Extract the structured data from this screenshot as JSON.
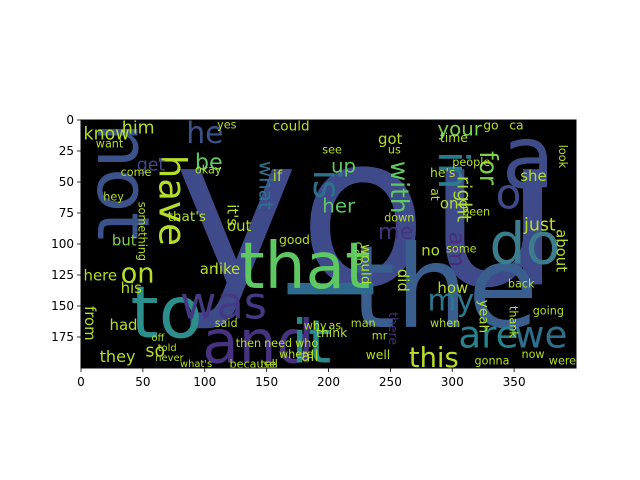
{
  "chart_data": {
    "type": "image",
    "title": "",
    "xlabel": "",
    "ylabel": "",
    "xlim": [
      0,
      400
    ],
    "ylim": [
      200,
      0
    ],
    "xticks": [
      0,
      50,
      100,
      150,
      200,
      250,
      300,
      350
    ],
    "yticks": [
      0,
      25,
      50,
      75,
      100,
      125,
      150,
      175
    ],
    "background_color": "#000000",
    "words": [
      {
        "text": "you",
        "x": 75,
        "y": 0,
        "size": 170,
        "rot": 0,
        "color": "#3f4a8a"
      },
      {
        "text": "the",
        "x": 218,
        "y": 95,
        "size": 92,
        "rot": 0,
        "color": "#3a5f8f"
      },
      {
        "text": "I",
        "x": 155,
        "y": 122,
        "size": 95,
        "rot": 90,
        "color": "#2e6a8e"
      },
      {
        "text": "a",
        "x": 340,
        "y": 0,
        "size": 70,
        "rot": 0,
        "color": "#3e4c8a"
      },
      {
        "text": "to",
        "x": 40,
        "y": 130,
        "size": 58,
        "rot": 0,
        "color": "#2c8f8c"
      },
      {
        "text": "not",
        "x": 7,
        "y": 2,
        "size": 58,
        "rot": 90,
        "color": "#3b528b"
      },
      {
        "text": "and",
        "x": 98,
        "y": 158,
        "size": 48,
        "rot": 0,
        "color": "#46327e"
      },
      {
        "text": "it",
        "x": 170,
        "y": 158,
        "size": 48,
        "rot": 0,
        "color": "#2a8a8b"
      },
      {
        "text": "that",
        "x": 128,
        "y": 95,
        "size": 52,
        "rot": 0,
        "color": "#5ec962"
      },
      {
        "text": "do",
        "x": 330,
        "y": 80,
        "size": 46,
        "rot": 0,
        "color": "#3b7d8d"
      },
      {
        "text": "was",
        "x": 80,
        "y": 132,
        "size": 36,
        "rot": 0,
        "color": "#443a83"
      },
      {
        "text": "are",
        "x": 305,
        "y": 160,
        "size": 30,
        "rot": 0,
        "color": "#26828e"
      },
      {
        "text": "we",
        "x": 350,
        "y": 160,
        "size": 30,
        "rot": 0,
        "color": "#2d708e"
      },
      {
        "text": "in",
        "x": 285,
        "y": 25,
        "size": 34,
        "rot": 90,
        "color": "#287c8e"
      },
      {
        "text": "of",
        "x": 335,
        "y": 45,
        "size": 34,
        "rot": 0,
        "color": "#3e4a89"
      },
      {
        "text": "have",
        "x": 60,
        "y": 28,
        "size": 30,
        "rot": 90,
        "color": "#b5de2b"
      },
      {
        "text": "is",
        "x": 185,
        "y": 40,
        "size": 30,
        "rot": 90,
        "color": "#2c718e"
      },
      {
        "text": "my",
        "x": 280,
        "y": 135,
        "size": 24,
        "rot": 0,
        "color": "#2a788e"
      },
      {
        "text": "this",
        "x": 265,
        "y": 182,
        "size": 22,
        "rot": 0,
        "color": "#b8de29"
      },
      {
        "text": "he",
        "x": 85,
        "y": 0,
        "size": 24,
        "rot": 0,
        "color": "#3b528b"
      },
      {
        "text": "be",
        "x": 92,
        "y": 26,
        "size": 18,
        "rot": 0,
        "color": "#5ec962"
      },
      {
        "text": "on",
        "x": 32,
        "y": 114,
        "size": 22,
        "rot": 0,
        "color": "#b5de2b"
      },
      {
        "text": "for",
        "x": 320,
        "y": 25,
        "size": 20,
        "rot": 90,
        "color": "#7ad151"
      },
      {
        "text": "right",
        "x": 302,
        "y": 45,
        "size": 16,
        "rot": 90,
        "color": "#a2da37"
      },
      {
        "text": "am",
        "x": 295,
        "y": 90,
        "size": 18,
        "rot": 90,
        "color": "#472d7b"
      },
      {
        "text": "with",
        "x": 248,
        "y": 33,
        "size": 20,
        "rot": 90,
        "color": "#5ec962"
      },
      {
        "text": "me",
        "x": 240,
        "y": 82,
        "size": 18,
        "rot": 0,
        "color": "#46337e"
      },
      {
        "text": "your",
        "x": 288,
        "y": 0,
        "size": 16,
        "rot": 0,
        "color": "#7ad151"
      },
      {
        "text": "up",
        "x": 202,
        "y": 30,
        "size": 16,
        "rot": 0,
        "color": "#63cb5f"
      },
      {
        "text": "her",
        "x": 195,
        "y": 62,
        "size": 16,
        "rot": 0,
        "color": "#5ec962"
      },
      {
        "text": "what",
        "x": 142,
        "y": 33,
        "size": 16,
        "rot": 90,
        "color": "#2c728e"
      },
      {
        "text": "know",
        "x": 2,
        "y": 5,
        "size": 14,
        "rot": 0,
        "color": "#b5de2b"
      },
      {
        "text": "him",
        "x": 33,
        "y": 0,
        "size": 14,
        "rot": 0,
        "color": "#b5de2b"
      },
      {
        "text": "get",
        "x": 45,
        "y": 30,
        "size": 14,
        "rot": 0,
        "color": "#3e4a89"
      },
      {
        "text": "so",
        "x": 52,
        "y": 180,
        "size": 14,
        "rot": 0,
        "color": "#b5de2b"
      },
      {
        "text": "they",
        "x": 15,
        "y": 185,
        "size": 13,
        "rot": 0,
        "color": "#b5de2b"
      },
      {
        "text": "here",
        "x": 2,
        "y": 120,
        "size": 12,
        "rot": 0,
        "color": "#b5de2b"
      },
      {
        "text": "from",
        "x": 2,
        "y": 150,
        "size": 12,
        "rot": 90,
        "color": "#b5de2b"
      },
      {
        "text": "but",
        "x": 25,
        "y": 92,
        "size": 12,
        "rot": 0,
        "color": "#7ad151"
      },
      {
        "text": "his",
        "x": 32,
        "y": 130,
        "size": 12,
        "rot": 0,
        "color": "#b5de2b"
      },
      {
        "text": "had",
        "x": 23,
        "y": 160,
        "size": 12,
        "rot": 0,
        "color": "#b5de2b"
      },
      {
        "text": "just",
        "x": 358,
        "y": 78,
        "size": 14,
        "rot": 0,
        "color": "#b5de2b"
      },
      {
        "text": "about",
        "x": 383,
        "y": 88,
        "size": 12,
        "rot": 90,
        "color": "#b5de2b"
      },
      {
        "text": "she",
        "x": 355,
        "y": 40,
        "size": 12,
        "rot": 0,
        "color": "#b5de2b"
      },
      {
        "text": "one",
        "x": 290,
        "y": 62,
        "size": 12,
        "rot": 0,
        "color": "#b5de2b"
      },
      {
        "text": "how",
        "x": 288,
        "y": 130,
        "size": 12,
        "rot": 0,
        "color": "#b5de2b"
      },
      {
        "text": "no",
        "x": 275,
        "y": 100,
        "size": 12,
        "rot": 0,
        "color": "#b5de2b"
      },
      {
        "text": "did",
        "x": 255,
        "y": 120,
        "size": 12,
        "rot": 90,
        "color": "#b5de2b"
      },
      {
        "text": "would",
        "x": 225,
        "y": 100,
        "size": 11,
        "rot": 90,
        "color": "#b5de2b"
      },
      {
        "text": "can",
        "x": 219,
        "y": 98,
        "size": 11,
        "rot": 90,
        "color": "#7ad151"
      },
      {
        "text": "got",
        "x": 240,
        "y": 10,
        "size": 12,
        "rot": 0,
        "color": "#b5de2b"
      },
      {
        "text": "like",
        "x": 108,
        "y": 115,
        "size": 12,
        "rot": 0,
        "color": "#b5de2b"
      },
      {
        "text": "an",
        "x": 96,
        "y": 115,
        "size": 12,
        "rot": 0,
        "color": "#b5de2b"
      },
      {
        "text": "out",
        "x": 118,
        "y": 80,
        "size": 12,
        "rot": 0,
        "color": "#b5de2b"
      },
      {
        "text": "if",
        "x": 155,
        "y": 40,
        "size": 12,
        "rot": 0,
        "color": "#b5de2b"
      },
      {
        "text": "all",
        "x": 178,
        "y": 185,
        "size": 12,
        "rot": 0,
        "color": "#b5de2b"
      },
      {
        "text": "think",
        "x": 190,
        "y": 167,
        "size": 10,
        "rot": 0,
        "color": "#b5de2b"
      },
      {
        "text": "could",
        "x": 155,
        "y": 0,
        "size": 11,
        "rot": 0,
        "color": "#b5de2b"
      },
      {
        "text": "good",
        "x": 160,
        "y": 92,
        "size": 10,
        "rot": 0,
        "color": "#b5de2b"
      },
      {
        "text": "yeah",
        "x": 320,
        "y": 145,
        "size": 11,
        "rot": 90,
        "color": "#b5de2b"
      },
      {
        "text": "well",
        "x": 230,
        "y": 185,
        "size": 10,
        "rot": 0,
        "color": "#b5de2b"
      },
      {
        "text": "there",
        "x": 248,
        "y": 155,
        "size": 10,
        "rot": 90,
        "color": "#46327e"
      },
      {
        "text": "time",
        "x": 290,
        "y": 10,
        "size": 10,
        "rot": 0,
        "color": "#b5de2b"
      },
      {
        "text": "go",
        "x": 325,
        "y": 0,
        "size": 10,
        "rot": 0,
        "color": "#b5de2b"
      },
      {
        "text": "ca",
        "x": 346,
        "y": 0,
        "size": 10,
        "rot": 0,
        "color": "#b5de2b"
      },
      {
        "text": "yes",
        "x": 110,
        "y": 0,
        "size": 9,
        "rot": 0,
        "color": "#b5de2b"
      },
      {
        "text": "okay",
        "x": 92,
        "y": 36,
        "size": 9,
        "rot": 0,
        "color": "#b5de2b"
      },
      {
        "text": "want",
        "x": 12,
        "y": 15,
        "size": 9,
        "rot": 0,
        "color": "#b5de2b"
      },
      {
        "text": "hey",
        "x": 18,
        "y": 58,
        "size": 9,
        "rot": 0,
        "color": "#b5de2b"
      },
      {
        "text": "come",
        "x": 32,
        "y": 38,
        "size": 9,
        "rot": 0,
        "color": "#b5de2b"
      },
      {
        "text": "need",
        "x": 148,
        "y": 176,
        "size": 9,
        "rot": 0,
        "color": "#b5de2b"
      },
      {
        "text": "then",
        "x": 125,
        "y": 176,
        "size": 9,
        "rot": 0,
        "color": "#b5de2b"
      },
      {
        "text": "who",
        "x": 173,
        "y": 176,
        "size": 9,
        "rot": 0,
        "color": "#b5de2b"
      },
      {
        "text": "where",
        "x": 160,
        "y": 185,
        "size": 9,
        "rot": 0,
        "color": "#b5de2b"
      },
      {
        "text": "said",
        "x": 108,
        "y": 160,
        "size": 9,
        "rot": 0,
        "color": "#b5de2b"
      },
      {
        "text": "why",
        "x": 180,
        "y": 162,
        "size": 9,
        "rot": 0,
        "color": "#b5de2b"
      },
      {
        "text": "as",
        "x": 200,
        "y": 162,
        "size": 9,
        "rot": 0,
        "color": "#b5de2b"
      },
      {
        "text": "man",
        "x": 218,
        "y": 160,
        "size": 9,
        "rot": 0,
        "color": "#b5de2b"
      },
      {
        "text": "mr",
        "x": 235,
        "y": 170,
        "size": 9,
        "rot": 0,
        "color": "#b5de2b"
      },
      {
        "text": "tell",
        "x": 145,
        "y": 193,
        "size": 9,
        "rot": 0,
        "color": "#b5de2b"
      },
      {
        "text": "because",
        "x": 120,
        "y": 193,
        "size": 9,
        "rot": 0,
        "color": "#b5de2b"
      },
      {
        "text": "what's",
        "x": 80,
        "y": 193,
        "size": 8,
        "rot": 0,
        "color": "#b5de2b"
      },
      {
        "text": "never",
        "x": 60,
        "y": 188,
        "size": 8,
        "rot": 0,
        "color": "#b5de2b"
      },
      {
        "text": "told",
        "x": 62,
        "y": 180,
        "size": 8,
        "rot": 0,
        "color": "#b5de2b"
      },
      {
        "text": "off",
        "x": 57,
        "y": 172,
        "size": 8,
        "rot": 0,
        "color": "#b5de2b"
      },
      {
        "text": "when",
        "x": 282,
        "y": 160,
        "size": 9,
        "rot": 0,
        "color": "#b5de2b"
      },
      {
        "text": "some",
        "x": 295,
        "y": 100,
        "size": 9,
        "rot": 0,
        "color": "#b5de2b"
      },
      {
        "text": "he's",
        "x": 282,
        "y": 38,
        "size": 10,
        "rot": 0,
        "color": "#b5de2b"
      },
      {
        "text": "at",
        "x": 282,
        "y": 55,
        "size": 10,
        "rot": 90,
        "color": "#b5de2b"
      },
      {
        "text": "people",
        "x": 300,
        "y": 30,
        "size": 9,
        "rot": 0,
        "color": "#b5de2b"
      },
      {
        "text": "been",
        "x": 308,
        "y": 70,
        "size": 9,
        "rot": 0,
        "color": "#b5de2b"
      },
      {
        "text": "down",
        "x": 245,
        "y": 75,
        "size": 9,
        "rot": 0,
        "color": "#b5de2b"
      },
      {
        "text": "see",
        "x": 195,
        "y": 20,
        "size": 9,
        "rot": 0,
        "color": "#b5de2b"
      },
      {
        "text": "us",
        "x": 248,
        "y": 20,
        "size": 9,
        "rot": 0,
        "color": "#b5de2b"
      },
      {
        "text": "back",
        "x": 345,
        "y": 128,
        "size": 9,
        "rot": 0,
        "color": "#b5de2b"
      },
      {
        "text": "thank",
        "x": 345,
        "y": 150,
        "size": 9,
        "rot": 90,
        "color": "#b5de2b"
      },
      {
        "text": "going",
        "x": 365,
        "y": 150,
        "size": 9,
        "rot": 0,
        "color": "#b5de2b"
      },
      {
        "text": "were",
        "x": 378,
        "y": 190,
        "size": 9,
        "rot": 0,
        "color": "#b5de2b"
      },
      {
        "text": "now",
        "x": 356,
        "y": 185,
        "size": 9,
        "rot": 0,
        "color": "#b5de2b"
      },
      {
        "text": "gonna",
        "x": 318,
        "y": 190,
        "size": 9,
        "rot": 0,
        "color": "#b5de2b"
      },
      {
        "text": "look",
        "x": 385,
        "y": 20,
        "size": 9,
        "rot": 90,
        "color": "#b5de2b"
      },
      {
        "text": "it's",
        "x": 117,
        "y": 68,
        "size": 12,
        "rot": 90,
        "color": "#b5de2b"
      },
      {
        "text": "that's",
        "x": 70,
        "y": 73,
        "size": 11,
        "rot": 0,
        "color": "#b5de2b"
      },
      {
        "text": "something",
        "x": 45,
        "y": 66,
        "size": 9,
        "rot": 90,
        "color": "#b5de2b"
      }
    ]
  }
}
